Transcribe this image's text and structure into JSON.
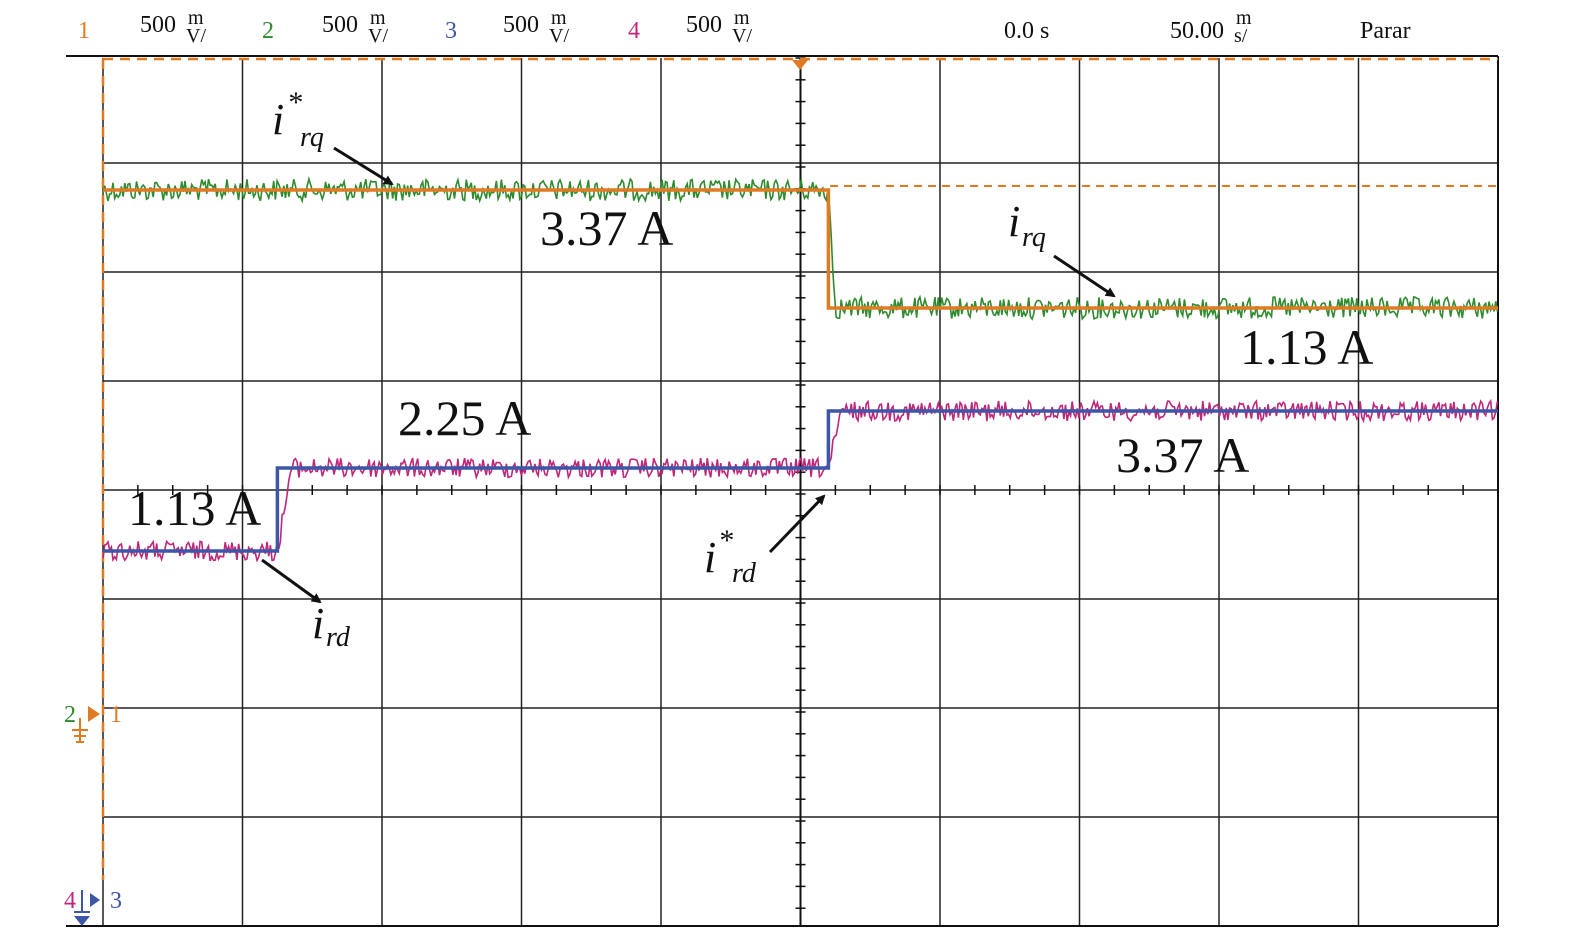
{
  "colors": {
    "ch1": "#e07b24",
    "ch2": "#2e8b2e",
    "ch3": "#3d56a6",
    "ch4": "#c0267a",
    "grid": "#222222",
    "arrow": "#111111"
  },
  "header": {
    "channels": [
      {
        "num": "1",
        "scale": "500",
        "unit_top": "m",
        "unit_bottom": "V/",
        "color": "#e07b24"
      },
      {
        "num": "2",
        "scale": "500",
        "unit_top": "m",
        "unit_bottom": "V/",
        "color": "#2e8b2e"
      },
      {
        "num": "3",
        "scale": "500",
        "unit_top": "m",
        "unit_bottom": "V/",
        "color": "#3d56a6"
      },
      {
        "num": "4",
        "scale": "500",
        "unit_top": "m",
        "unit_bottom": "V/",
        "color": "#c0267a"
      }
    ],
    "delay": "0.0 s",
    "timebase": "50.00",
    "timebase_unit_top": "m",
    "timebase_unit_bottom": "s/",
    "run_state": "Parar"
  },
  "markers": {
    "ch2_ground": "2",
    "ch1_ground": "1",
    "ch4_ground": "4",
    "ch3_ground": "3"
  },
  "chart_data": {
    "type": "line",
    "x_divisions": 10,
    "y_divisions": 8,
    "x_range": [
      0,
      10
    ],
    "y_range_div": [
      -4,
      4
    ],
    "step_time_div": [
      1.25,
      5.2
    ],
    "series": [
      {
        "channel": "1",
        "name": "i*rq",
        "color": "#e07b24",
        "x": [
          0,
          5.2,
          5.2,
          10
        ],
        "y": [
          3.37,
          3.37,
          1.13,
          1.13
        ]
      },
      {
        "channel": "2",
        "name": "irq",
        "color": "#2e8b2e",
        "x": [
          0,
          5.2,
          5.25,
          10
        ],
        "y": [
          3.37,
          3.37,
          1.13,
          1.13
        ]
      },
      {
        "channel": "3",
        "name": "i*rd",
        "color": "#3d56a6",
        "x": [
          0,
          1.25,
          1.25,
          5.2,
          5.2,
          10
        ],
        "y": [
          1.13,
          1.13,
          2.25,
          2.25,
          3.37,
          3.37
        ]
      },
      {
        "channel": "4",
        "name": "ird",
        "color": "#c0267a",
        "x": [
          0,
          1.25,
          1.35,
          5.2,
          5.3,
          10
        ],
        "y": [
          1.13,
          1.13,
          2.25,
          2.25,
          3.37,
          3.37
        ]
      }
    ],
    "annotations": {
      "irq_ref_before": "3.37 A",
      "irq_after": "1.13 A",
      "ird_initial": "1.13 A",
      "ird_middle": "2.25 A",
      "ird_final": "3.37 A"
    },
    "labels": {
      "irq_ref_base": "i",
      "irq_ref_sup": "*",
      "irq_ref_sub": "rq",
      "irq_base": "i",
      "irq_sub": "rq",
      "ird_ref_base": "i",
      "ird_ref_sup": "*",
      "ird_ref_sub": "rd",
      "ird_base": "i",
      "ird_sub": "rd"
    }
  }
}
